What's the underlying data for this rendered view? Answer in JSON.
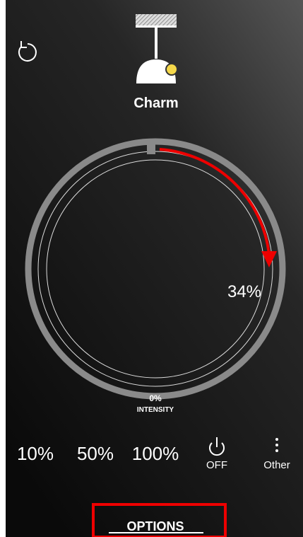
{
  "device": {
    "name": "Charm"
  },
  "dial": {
    "value_text": "34%",
    "min_text": "0%",
    "caption": "INTENSITY"
  },
  "presets": [
    "10%",
    "50%",
    "100%"
  ],
  "actions": {
    "off": "OFF",
    "other": "Other"
  },
  "footer": {
    "options": "OPTIONS"
  }
}
